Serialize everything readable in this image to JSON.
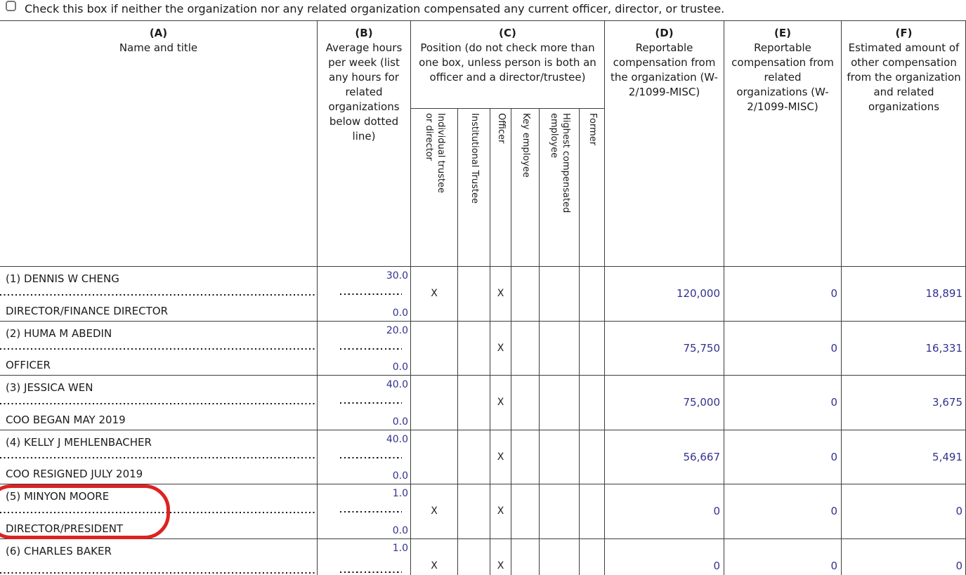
{
  "page": {
    "checkbox_label": "Check this box if neither the organization nor any related organization compensated any current officer, director, or trustee."
  },
  "header": {
    "col_a": {
      "letter": "(A)",
      "title": "Name and title"
    },
    "col_b": {
      "letter": "(B)",
      "title": "Average hours per week (list any hours for related organizations below dotted line)"
    },
    "col_c": {
      "letter": "(C)",
      "title": "Position (do not check more than one box, unless person is both an officer and a director/trustee)"
    },
    "col_c_sub": [
      "Individual trustee\nor director",
      "Institutional Trustee",
      "Officer",
      "Key employee",
      "Highest compensated\nemployee",
      "Former"
    ],
    "col_d": {
      "letter": "(D)",
      "title": "Reportable compensation from the organization (W-2/1099-MISC)"
    },
    "col_e": {
      "letter": "(E)",
      "title": "Reportable compensation from related organizations (W-2/1099-MISC)"
    },
    "col_f": {
      "letter": "(F)",
      "title": "Estimated amount of other compensation from the organization and related organizations"
    }
  },
  "rows": [
    {
      "name": "(1) DENNIS W CHENG",
      "title": "DIRECTOR/FINANCE DIRECTOR",
      "hours_top": "30.0",
      "hours_bottom": "0.0",
      "checks": [
        "X",
        "",
        "X",
        "",
        "",
        ""
      ],
      "comp_org": "120,000",
      "comp_related": "0",
      "comp_other": "18,891"
    },
    {
      "name": "(2) HUMA M ABEDIN",
      "title": "OFFICER",
      "hours_top": "20.0",
      "hours_bottom": "0.0",
      "checks": [
        "",
        "",
        "X",
        "",
        "",
        ""
      ],
      "comp_org": "75,750",
      "comp_related": "0",
      "comp_other": "16,331"
    },
    {
      "name": "(3) JESSICA WEN",
      "title": "COO BEGAN MAY 2019",
      "hours_top": "40.0",
      "hours_bottom": "0.0",
      "checks": [
        "",
        "",
        "X",
        "",
        "",
        ""
      ],
      "comp_org": "75,000",
      "comp_related": "0",
      "comp_other": "3,675"
    },
    {
      "name": "(4) KELLY J MEHLENBACHER",
      "title": "COO RESIGNED JULY 2019",
      "hours_top": "40.0",
      "hours_bottom": "0.0",
      "checks": [
        "",
        "",
        "X",
        "",
        "",
        ""
      ],
      "comp_org": "56,667",
      "comp_related": "0",
      "comp_other": "5,491"
    },
    {
      "name": "(5) MINYON MOORE",
      "title": "DIRECTOR/PRESIDENT",
      "hours_top": "1.0",
      "hours_bottom": "0.0",
      "checks": [
        "X",
        "",
        "X",
        "",
        "",
        ""
      ],
      "comp_org": "0",
      "comp_related": "0",
      "comp_other": "0"
    },
    {
      "name": "(6) CHARLES BAKER",
      "title": "",
      "hours_top": "1.0",
      "hours_bottom": "",
      "checks": [
        "X",
        "",
        "X",
        "",
        "",
        ""
      ],
      "comp_org": "0",
      "comp_related": "0",
      "comp_other": "0"
    }
  ],
  "annotation": {
    "shape": "red-circle",
    "highlighted_row": "(5) MINYON MOORE",
    "color": "#dd2222"
  },
  "colors": {
    "value_text": "#32328e",
    "border": "#3d3d3d",
    "annotation_red": "#dd2222"
  }
}
